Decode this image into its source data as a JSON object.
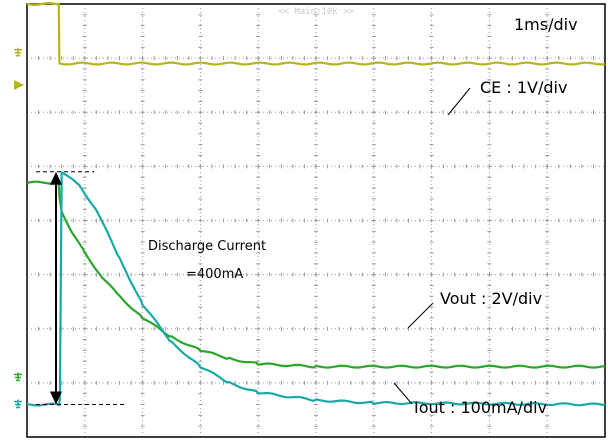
{
  "chart_data": {
    "type": "line",
    "subtitle": "<< Main:10k >>",
    "timebase": "1ms/div",
    "grid": true,
    "divisions": {
      "x": 10,
      "y": 8
    },
    "x_unit": "ms",
    "xlim": [
      0,
      10
    ],
    "series": [
      {
        "name": "CE : 1V/div",
        "color": "#b5b51a",
        "ground_marker_div": 7.1,
        "x": [
          0,
          0.55,
          0.56,
          10
        ],
        "y_div": [
          8.0,
          8.0,
          6.9,
          6.9
        ]
      },
      {
        "name": "Vout : 2V/div",
        "color": "#2aa62a",
        "ground_marker_div": 1.1,
        "x": [
          0,
          0.55,
          0.56,
          0.6,
          0.8,
          1.0,
          1.3,
          1.6,
          2.0,
          2.5,
          3.0,
          3.5,
          4.0,
          5.0,
          10
        ],
        "y_div": [
          4.7,
          4.7,
          4.45,
          4.15,
          3.75,
          3.4,
          2.95,
          2.6,
          2.2,
          1.85,
          1.6,
          1.45,
          1.35,
          1.3,
          1.3
        ]
      },
      {
        "name": "Iout : 100mA/div",
        "color": "#1aa8a8",
        "ground_marker_div": 0.6,
        "x": [
          0,
          0.56,
          0.57,
          0.6,
          0.9,
          1.2,
          1.6,
          2.0,
          2.5,
          3.0,
          3.5,
          4.0,
          5.0,
          6.0,
          10
        ],
        "y_div": [
          0.6,
          0.6,
          0.75,
          4.9,
          4.65,
          4.2,
          3.3,
          2.45,
          1.75,
          1.3,
          1.0,
          0.82,
          0.68,
          0.63,
          0.6
        ]
      }
    ],
    "annotation": {
      "line1": "Discharge Current",
      "line2": "=400mA",
      "from_div": 4.9,
      "to_div": 0.6
    }
  }
}
